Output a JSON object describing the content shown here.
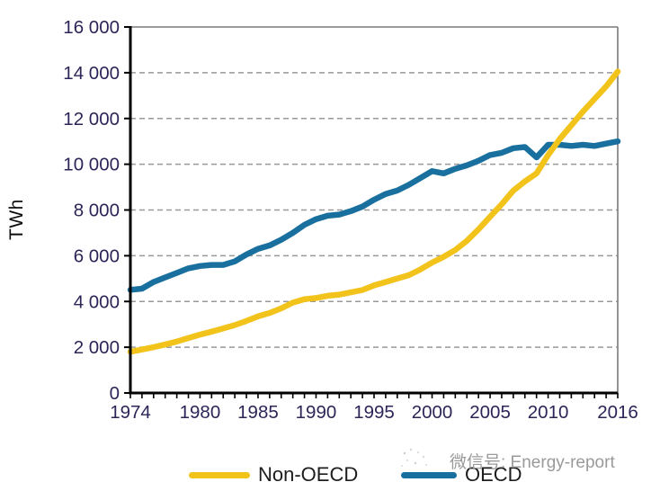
{
  "page": {
    "background": "#ffffff"
  },
  "colors": {
    "non_oecd_line": "#F2C31B",
    "oecd_line": "#19709E",
    "tick_text": "#2B2558",
    "grid": "#999999",
    "plot_border": "#7a7a7a",
    "axis": "#000000",
    "legend_text": "#1d1d1d",
    "watermark_text": "#9a9a9a"
  },
  "watermark": {
    "text": "微信号: Energy-report"
  },
  "chart_data": {
    "type": "line",
    "title": "",
    "xlabel": "",
    "ylabel": "TWh",
    "ylim": [
      0,
      16000
    ],
    "xlim": [
      1974,
      2016
    ],
    "grid": "horizontal dashed",
    "legend_position": "bottom",
    "yticks": [
      {
        "value": 0,
        "label": "0"
      },
      {
        "value": 2000,
        "label": "2 000"
      },
      {
        "value": 4000,
        "label": "4 000"
      },
      {
        "value": 6000,
        "label": "6 000"
      },
      {
        "value": 8000,
        "label": "8 000"
      },
      {
        "value": 10000,
        "label": "10 000"
      },
      {
        "value": 12000,
        "label": "12 000"
      },
      {
        "value": 14000,
        "label": "14 000"
      },
      {
        "value": 16000,
        "label": "16 000"
      }
    ],
    "xticks": [
      {
        "value": 1974,
        "label": "1974"
      },
      {
        "value": 1980,
        "label": "1980"
      },
      {
        "value": 1985,
        "label": "1985"
      },
      {
        "value": 1990,
        "label": "1990"
      },
      {
        "value": 1995,
        "label": "1995"
      },
      {
        "value": 2000,
        "label": "2000"
      },
      {
        "value": 2005,
        "label": "2005"
      },
      {
        "value": 2010,
        "label": "2010"
      },
      {
        "value": 2016,
        "label": "2016"
      }
    ],
    "x": [
      1974,
      1975,
      1976,
      1977,
      1978,
      1979,
      1980,
      1981,
      1982,
      1983,
      1984,
      1985,
      1986,
      1987,
      1988,
      1989,
      1990,
      1991,
      1992,
      1993,
      1994,
      1995,
      1996,
      1997,
      1998,
      1999,
      2000,
      2001,
      2002,
      2003,
      2004,
      2005,
      2006,
      2007,
      2008,
      2009,
      2010,
      2011,
      2012,
      2013,
      2014,
      2015,
      2016
    ],
    "series": [
      {
        "name": "Non-OECD",
        "color": "#F2C31B",
        "values": [
          1800,
          1900,
          2000,
          2120,
          2250,
          2400,
          2550,
          2680,
          2820,
          2970,
          3150,
          3350,
          3500,
          3700,
          3950,
          4100,
          4150,
          4250,
          4300,
          4400,
          4500,
          4700,
          4850,
          5000,
          5150,
          5400,
          5700,
          5950,
          6250,
          6650,
          7150,
          7700,
          8250,
          8850,
          9250,
          9600,
          10400,
          11100,
          11700,
          12300,
          12850,
          13400,
          14050
        ]
      },
      {
        "name": "OECD",
        "color": "#19709E",
        "values": [
          4510,
          4560,
          4850,
          5050,
          5250,
          5450,
          5550,
          5600,
          5600,
          5750,
          6050,
          6300,
          6450,
          6700,
          7000,
          7350,
          7600,
          7750,
          7800,
          7950,
          8150,
          8450,
          8700,
          8850,
          9100,
          9400,
          9700,
          9600,
          9800,
          9950,
          10150,
          10400,
          10500,
          10700,
          10750,
          10300,
          10850,
          10850,
          10800,
          10850,
          10800,
          10900,
          11000
        ]
      }
    ]
  }
}
